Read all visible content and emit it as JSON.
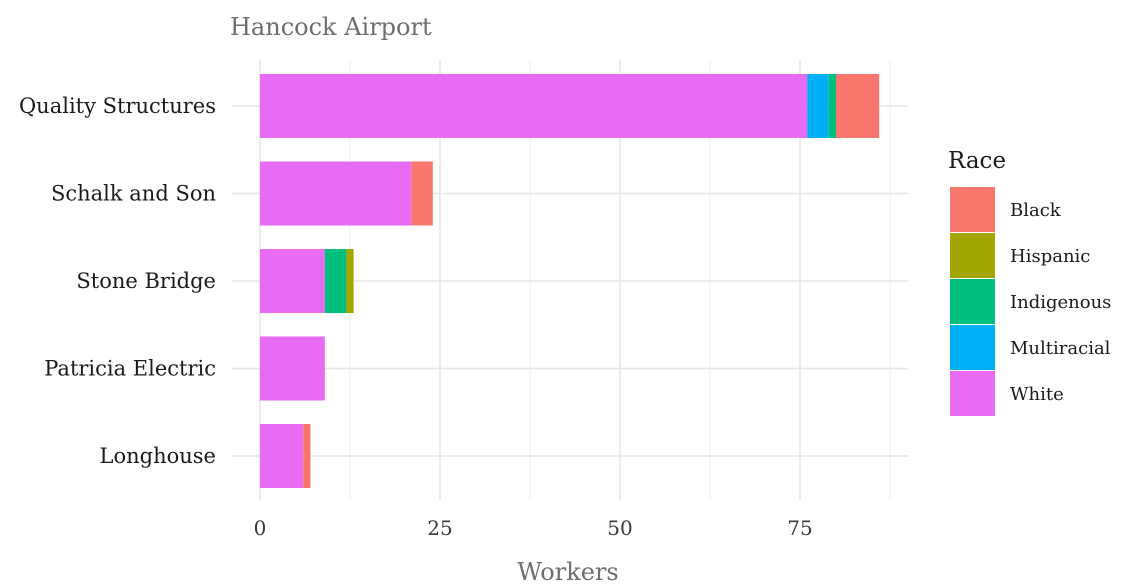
{
  "chart_data": {
    "type": "bar",
    "orientation": "horizontal",
    "stacked": true,
    "title": "Hancock Airport",
    "xlabel": "Workers",
    "ylabel": "",
    "xlim": [
      0,
      90
    ],
    "x_ticks": [
      0,
      25,
      50,
      75
    ],
    "grid": true,
    "legend_position": "right",
    "legend_title": "Race",
    "categories": [
      "Quality Structures",
      "Schalk and Son",
      "Stone Bridge",
      "Patricia Electric",
      "Longhouse"
    ],
    "stack_order": [
      "White",
      "Multiracial",
      "Indigenous",
      "Hispanic",
      "Black"
    ],
    "series": [
      {
        "name": "Black",
        "color": "#F8766D",
        "values": [
          6,
          3,
          0,
          0,
          1
        ]
      },
      {
        "name": "Hispanic",
        "color": "#A3A500",
        "values": [
          0,
          0,
          1,
          0,
          0
        ]
      },
      {
        "name": "Indigenous",
        "color": "#00BF7D",
        "values": [
          1,
          0,
          3,
          0,
          0
        ]
      },
      {
        "name": "Multiracial",
        "color": "#00B0F6",
        "values": [
          3,
          0,
          0,
          0,
          0
        ]
      },
      {
        "name": "White",
        "color": "#E76BF3",
        "values": [
          76,
          21,
          9,
          9,
          6
        ]
      }
    ]
  }
}
